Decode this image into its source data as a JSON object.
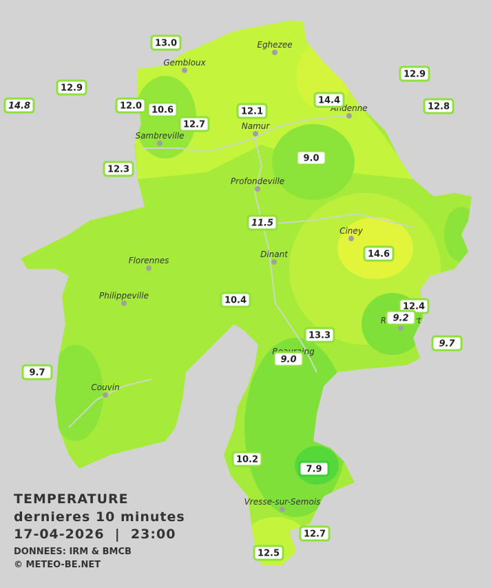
{
  "legend": {
    "line1": "TEMPERATURE",
    "line2": "dernieres 10 minutes",
    "line3": "17-04-2026  |  23:00",
    "line4": "DONNEES: IRM & BMCB",
    "line5": "© METEO-BE.NET"
  },
  "cities": [
    "Eghezee",
    "Gembloux",
    "Andenne",
    "Namur",
    "Sambreville",
    "Profondeville",
    "Ciney",
    "Dinant",
    "Florennes",
    "Philippeville",
    "Rochefort",
    "Beauraing",
    "Couvin",
    "Vresse-sur-Semois"
  ],
  "stations": [
    "13.0",
    "12.9",
    "14.8",
    "12.0",
    "10.6",
    "12.7",
    "12.1",
    "14.4",
    "12.9",
    "12.8",
    "12.3",
    "9.0",
    "11.5",
    "14.6",
    "10.4",
    "12.4",
    "9.2",
    "13.3",
    "9.7",
    "9.0",
    "9.7",
    "10.2",
    "7.9",
    "12.7",
    "12.5"
  ]
}
